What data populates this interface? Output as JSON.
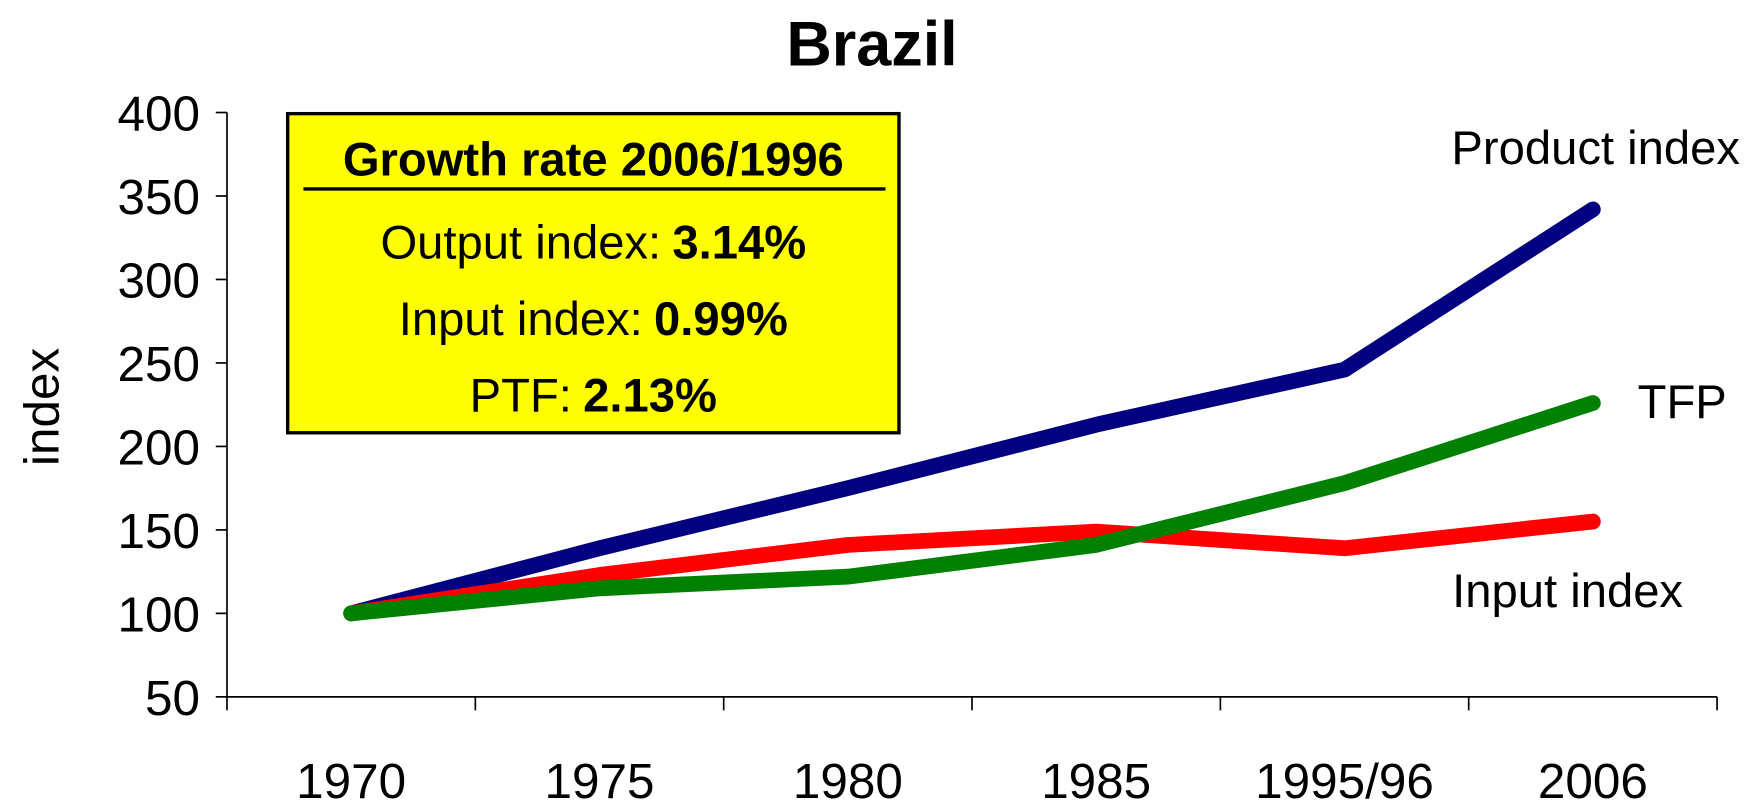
{
  "chart_data": {
    "type": "line",
    "title": "Brazil",
    "y_label": "index",
    "categories": [
      "1970",
      "1975",
      "1980",
      "1985",
      "1995/96",
      "2006"
    ],
    "series": [
      {
        "name": "Product index",
        "color": "#000080",
        "values": [
          100,
          139,
          175,
          213,
          246,
          342
        ]
      },
      {
        "name": "Input index",
        "color": "#ff0000",
        "values": [
          100,
          123,
          141,
          149,
          139,
          155
        ]
      },
      {
        "name": "TFP",
        "color": "#008000",
        "values": [
          100,
          115,
          122,
          141,
          178,
          226
        ]
      }
    ],
    "ylim": [
      50,
      400
    ],
    "yticks": [
      50,
      100,
      150,
      200,
      250,
      300,
      350,
      400
    ],
    "annotation_box": {
      "title": "Growth rate 2006/1996",
      "color": "#ffff00",
      "items": [
        {
          "label": "Output index:",
          "value": "3.14%"
        },
        {
          "label": "Input index:",
          "value": "0.99%"
        },
        {
          "label": "PTF:",
          "value": "2.13%"
        }
      ]
    }
  }
}
